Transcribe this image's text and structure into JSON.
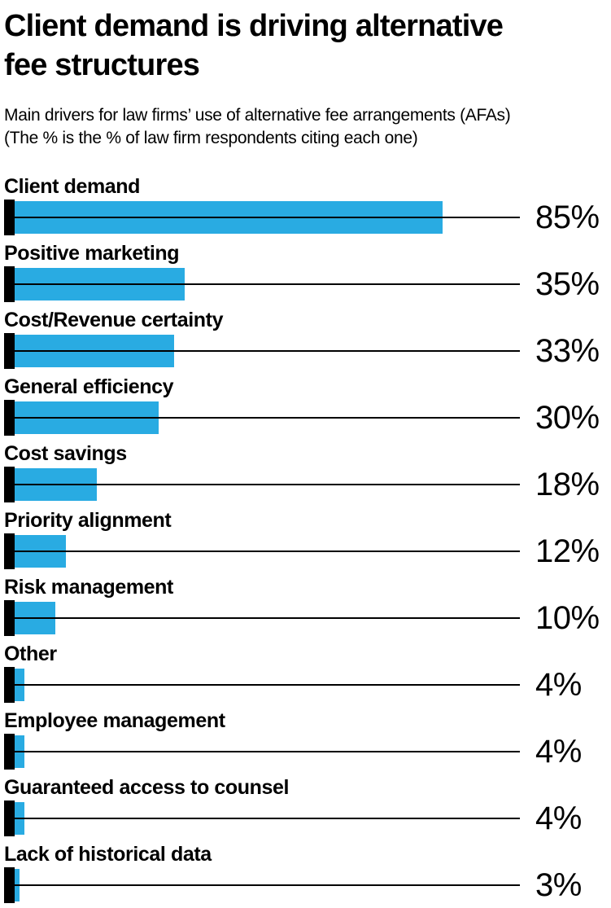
{
  "chart_data": {
    "type": "bar",
    "orientation": "horizontal",
    "title_lines": [
      "Client demand is driving alternative",
      "fee structures"
    ],
    "subtitle_lines": [
      "Main drivers for law firms’ use of alternative fee arrangements (AFAs)",
      "(The % is the % of law firm respondents citing each one)"
    ],
    "categories": [
      "Client demand",
      "Positive marketing",
      "Cost/Revenue certainty",
      "General efficiency",
      "Cost savings",
      "Priority alignment",
      "Risk management",
      "Other",
      "Employee management",
      "Guaranteed access to counsel",
      "Lack of historical data"
    ],
    "values": [
      85,
      35,
      33,
      30,
      18,
      12,
      10,
      4,
      4,
      4,
      3
    ],
    "value_labels": [
      "85%",
      "35%",
      "33%",
      "30%",
      "18%",
      "12%",
      "10%",
      "4%",
      "4%",
      "4%",
      "3%"
    ],
    "xlabel": "",
    "ylabel": "",
    "xlim": [
      0,
      100
    ],
    "grid": false,
    "legend": false,
    "bar_color": "#29ABE2",
    "tick_color": "#000000",
    "leader_line_color": "#000000",
    "text_color": "#000000",
    "background_color": "#ffffff"
  }
}
